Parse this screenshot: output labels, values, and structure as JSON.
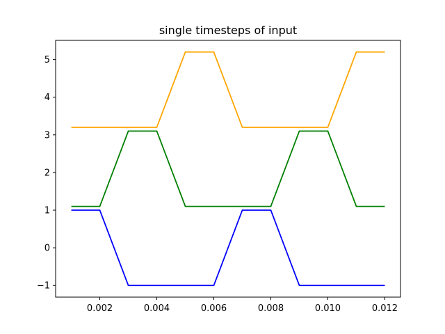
{
  "chart_data": {
    "type": "line",
    "title": "single timesteps of input",
    "xlabel": "",
    "ylabel": "",
    "xlim": [
      0.00045,
      0.01255
    ],
    "ylim": [
      -1.31,
      5.51
    ],
    "grid": false,
    "x_ticks": [
      0.002,
      0.004,
      0.006,
      0.008,
      0.01,
      0.012
    ],
    "x_tick_labels": [
      "0.002",
      "0.004",
      "0.006",
      "0.008",
      "0.010",
      "0.012"
    ],
    "y_ticks": [
      -1,
      0,
      1,
      2,
      3,
      4,
      5
    ],
    "y_tick_labels": [
      "−1",
      "0",
      "1",
      "2",
      "3",
      "4",
      "5"
    ],
    "x": [
      0.001,
      0.002,
      0.003,
      0.004,
      0.005,
      0.006,
      0.007,
      0.008,
      0.009,
      0.01,
      0.011,
      0.012
    ],
    "series": [
      {
        "color": "#0000ff",
        "values": [
          1,
          1,
          -1,
          -1,
          -1,
          -1,
          1,
          1,
          -1,
          -1,
          -1,
          -1
        ]
      },
      {
        "color": "#008000",
        "values": [
          1.1,
          1.1,
          3.1,
          3.1,
          1.1,
          1.1,
          1.1,
          1.1,
          3.1,
          3.1,
          1.1,
          1.1
        ]
      },
      {
        "color": "#ffa500",
        "values": [
          3.2,
          3.2,
          3.2,
          3.2,
          5.2,
          5.2,
          3.2,
          3.2,
          3.2,
          3.2,
          5.2,
          5.2
        ]
      }
    ]
  }
}
